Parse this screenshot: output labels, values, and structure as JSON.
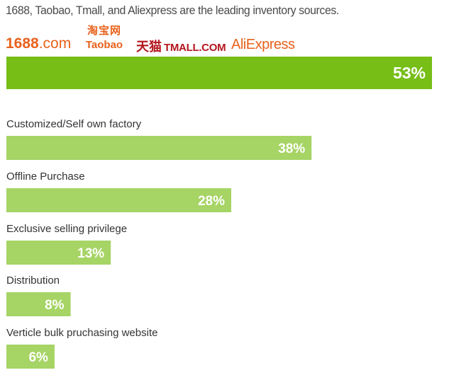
{
  "headline": "1688, Taobao, Tmall, and Aliexpress are the leading inventory sources.",
  "logos": {
    "l1688_main": "1688",
    "l1688_suffix": ".com",
    "taobao_cn": "淘宝网",
    "taobao_en": "Taobao",
    "tmall_cn": "天猫",
    "tmall_en": "TMALL.COM",
    "aliexpress": "AliExpress"
  },
  "colors": {
    "top_bar": "#77be17",
    "bars": "#a6d465",
    "logo_orange": "#e8621c",
    "tmall_red": "#b3161d"
  },
  "chart_data": {
    "type": "bar",
    "orientation": "horizontal",
    "categories": [
      "",
      "Customized/Self own factory",
      "Offline Purchase",
      "Exclusive selling privilege",
      "Distribution",
      "Verticle bulk pruchasing website"
    ],
    "values": [
      53,
      38,
      28,
      13,
      8,
      6
    ],
    "value_labels": [
      "53%",
      "38%",
      "28%",
      "13%",
      "8%",
      "6%"
    ],
    "unit": "%",
    "xlim": [
      0,
      53
    ],
    "grid": false,
    "legend": "none"
  }
}
